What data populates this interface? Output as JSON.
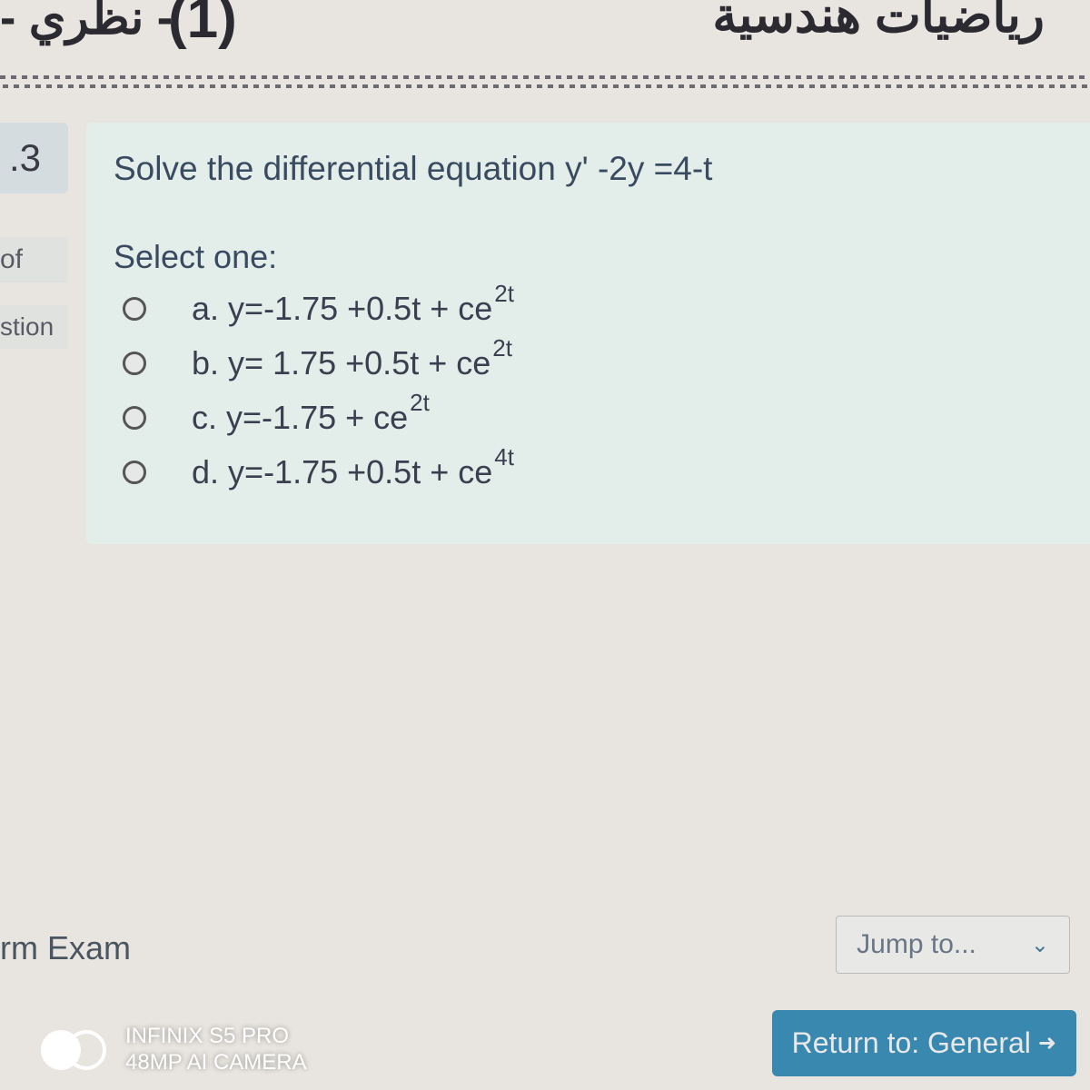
{
  "header": {
    "arabic_right": "رياضيات هندسية",
    "number": "(1)",
    "arabic_left": "- نظري -"
  },
  "sidebar": {
    "question_num": ".3",
    "of_label": "of",
    "stion_label": "stion"
  },
  "question": {
    "prompt": "Solve the differential equation y' -2y =4-t",
    "select_label": "Select one:",
    "options": [
      {
        "letter": "a.",
        "body": "y=-1.75 +0.5t + ce",
        "exponent": "2t"
      },
      {
        "letter": "b.",
        "body": "y= 1.75 +0.5t + ce",
        "exponent": "2t"
      },
      {
        "letter": "c.",
        "body": "y=-1.75 + ce",
        "exponent": "2t"
      },
      {
        "letter": "d.",
        "body": "y=-1.75 +0.5t + ce",
        "exponent": "4t"
      }
    ]
  },
  "footer": {
    "exam_label": "rm Exam",
    "jump_label": "Jump to...",
    "return_label": "Return to: General"
  },
  "watermark": {
    "line1": "INFINIX S5 PRO",
    "line2": "48MP AI CAMERA"
  }
}
